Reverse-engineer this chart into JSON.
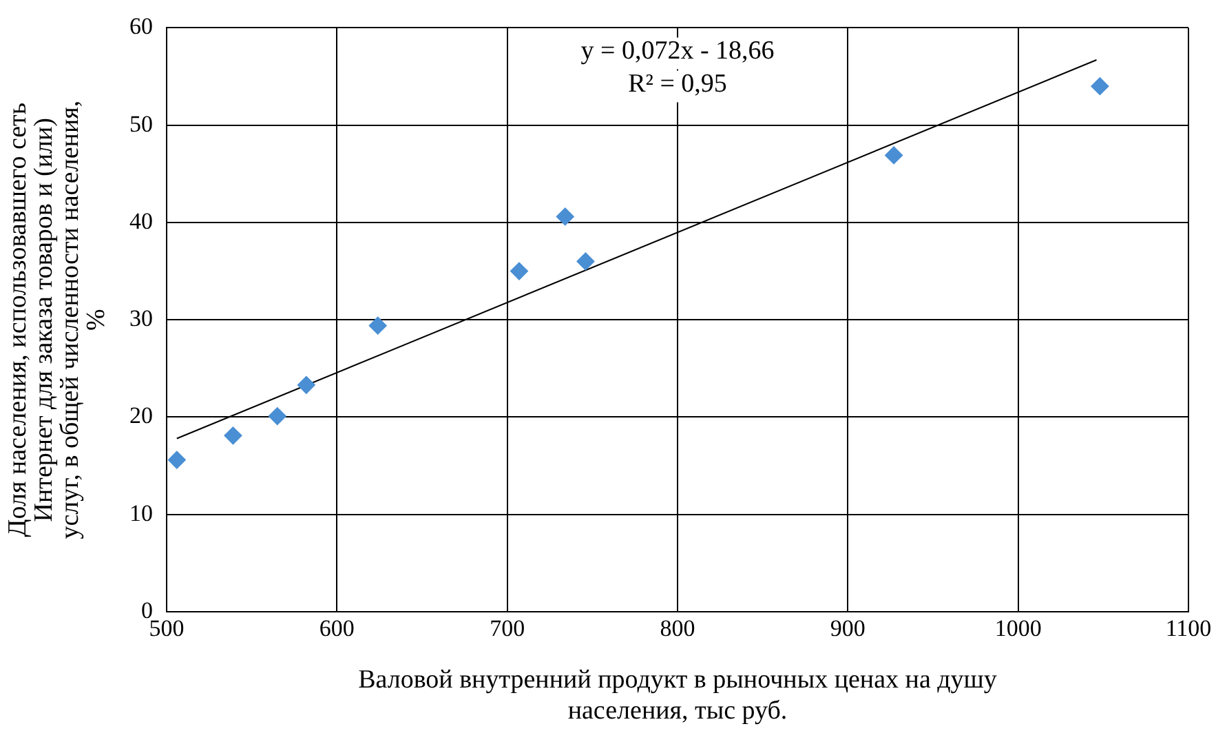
{
  "chart_data": {
    "type": "scatter",
    "xlabel": "Валовой внутренний продукт в рыночных ценах на душу населения, тыс руб.",
    "ylabel": "Доля населения, использовавшего сеть Интернет для заказа товаров и (или) услуг, в общей численности населения, %",
    "x": [
      506,
      539,
      565,
      582,
      624,
      707,
      734,
      746,
      927,
      1048
    ],
    "series": [
      {
        "color": "#4a8fd4",
        "marker": "diamond",
        "values": [
          15.6,
          18.1,
          20.1,
          23.3,
          29.4,
          35.0,
          40.6,
          36.0,
          46.9,
          54.0
        ]
      },
      {
        "type": "line",
        "color": "#000000",
        "marker": "none",
        "x": [
          506,
          1046
        ],
        "values": [
          17.8,
          56.7
        ]
      }
    ],
    "xlim": [
      500,
      1100
    ],
    "xticks": [
      500,
      600,
      700,
      800,
      900,
      1000,
      1100
    ],
    "ylim": [
      0,
      60
    ],
    "yticks": [
      0,
      10,
      20,
      30,
      40,
      50,
      60
    ],
    "grid": true,
    "legend": false,
    "annotations": [
      "y = 0,072x - 18,66",
      "R² = 0,95"
    ]
  }
}
